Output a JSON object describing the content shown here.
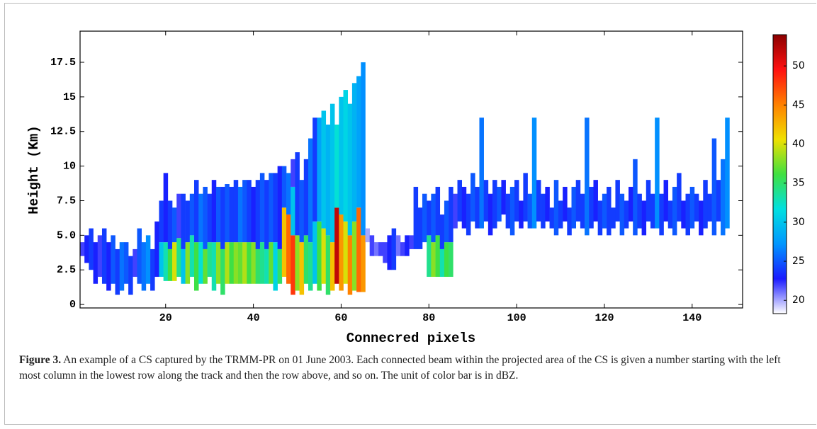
{
  "chart_data": {
    "type": "heatmap",
    "xlabel": "Connecred pixels",
    "ylabel": "Height (Km)",
    "xlim": [
      0.5,
      151.5
    ],
    "xticks": [
      20,
      40,
      60,
      80,
      100,
      120,
      140
    ],
    "ylim": [
      -0.25,
      19.75
    ],
    "yticks": [
      0,
      2.5,
      {
        "value": 5,
        "label": "5.0"
      },
      7.5,
      10,
      12.5,
      15,
      17.5
    ],
    "clim": [
      18.3,
      54
    ],
    "colorbar_ticks": [
      20,
      25,
      30,
      35,
      40,
      45,
      50
    ],
    "colormap": [
      "#ffffff",
      "#1a1aff",
      "#0096ff",
      "#00e0e0",
      "#40e040",
      "#f0e000",
      "#ff8000",
      "#ff1010",
      "#8b0000"
    ],
    "cells": [
      [
        1,
        3.5,
        4.5,
        22
      ],
      [
        2,
        3,
        5,
        23
      ],
      [
        3,
        2.5,
        5.5,
        24
      ],
      [
        4,
        1.5,
        4.5,
        23
      ],
      [
        5,
        2,
        5,
        22
      ],
      [
        6,
        1.5,
        5.5,
        24
      ],
      [
        7,
        1,
        4.5,
        23
      ],
      [
        8,
        1.5,
        5,
        25
      ],
      [
        9,
        0.7,
        4,
        24
      ],
      [
        10,
        1,
        4.5,
        26
      ],
      [
        11,
        1.5,
        4.5,
        25
      ],
      [
        12,
        0.7,
        3.5,
        24
      ],
      [
        13,
        2,
        4,
        22
      ],
      [
        14,
        1.5,
        5.5,
        25
      ],
      [
        15,
        1,
        4.5,
        26
      ],
      [
        16,
        1.5,
        5,
        27
      ],
      [
        17,
        1,
        4,
        24
      ],
      [
        18,
        2,
        6,
        23
      ],
      [
        19,
        2,
        4.5,
        30
      ],
      [
        19,
        4.5,
        7.5,
        24
      ],
      [
        20,
        1.7,
        4.5,
        33
      ],
      [
        20,
        4.5,
        9.5,
        23
      ],
      [
        21,
        1.7,
        4,
        36
      ],
      [
        21,
        4,
        7.5,
        24
      ],
      [
        22,
        1.7,
        4.5,
        40
      ],
      [
        22,
        4.5,
        7,
        25
      ],
      [
        23,
        2,
        4.8,
        34
      ],
      [
        23,
        4.8,
        8,
        22
      ],
      [
        24,
        1.5,
        4,
        30
      ],
      [
        24,
        4,
        8,
        24
      ],
      [
        25,
        1.5,
        4.5,
        38
      ],
      [
        25,
        4.5,
        7.5,
        24
      ],
      [
        26,
        2,
        5,
        33
      ],
      [
        26,
        5,
        8,
        25
      ],
      [
        27,
        1,
        4.5,
        36
      ],
      [
        27,
        4.5,
        9,
        24
      ],
      [
        28,
        1.5,
        4.5,
        32
      ],
      [
        28,
        4.5,
        8,
        26
      ],
      [
        29,
        1.5,
        4,
        37
      ],
      [
        29,
        4,
        8.5,
        25
      ],
      [
        30,
        2,
        4.5,
        34
      ],
      [
        30,
        4.5,
        8,
        24
      ],
      [
        31,
        1,
        4.5,
        33
      ],
      [
        31,
        4.5,
        9,
        23
      ],
      [
        32,
        1.5,
        4.5,
        38
      ],
      [
        32,
        4.5,
        8.5,
        25
      ],
      [
        33,
        0.7,
        4,
        35
      ],
      [
        33,
        4,
        8.5,
        24
      ],
      [
        34,
        1.5,
        4.5,
        39
      ],
      [
        34,
        4.5,
        8.7,
        25
      ],
      [
        35,
        1.5,
        4.5,
        36
      ],
      [
        35,
        4.5,
        8.5,
        24
      ],
      [
        36,
        1.5,
        4.5,
        38
      ],
      [
        36,
        4.5,
        9,
        24
      ],
      [
        37,
        1.5,
        4.5,
        37
      ],
      [
        37,
        4.5,
        8.5,
        26
      ],
      [
        38,
        1.5,
        4.5,
        39
      ],
      [
        38,
        4.5,
        9,
        25
      ],
      [
        39,
        1.5,
        4.5,
        36
      ],
      [
        39,
        4.5,
        9,
        24
      ],
      [
        40,
        1.5,
        4.5,
        38
      ],
      [
        40,
        4.5,
        8.5,
        23
      ],
      [
        41,
        1.5,
        4,
        35
      ],
      [
        41,
        4,
        9,
        24
      ],
      [
        42,
        1.5,
        4.5,
        34
      ],
      [
        42,
        4.5,
        9.5,
        25
      ],
      [
        43,
        1.5,
        4,
        33
      ],
      [
        43,
        4,
        9,
        24
      ],
      [
        44,
        1.5,
        4.5,
        37
      ],
      [
        44,
        4.5,
        9.5,
        25
      ],
      [
        45,
        1,
        4.5,
        31
      ],
      [
        45,
        4.5,
        9.5,
        24
      ],
      [
        46,
        1.5,
        4,
        35
      ],
      [
        46,
        4,
        10,
        23
      ],
      [
        47,
        2,
        7,
        42
      ],
      [
        47,
        7,
        10,
        25
      ],
      [
        48,
        1.5,
        6.5,
        46
      ],
      [
        48,
        6.5,
        9.5,
        26
      ],
      [
        49,
        0.7,
        5,
        48
      ],
      [
        49,
        5,
        8.5,
        30
      ],
      [
        49,
        8.5,
        10.5,
        22
      ],
      [
        50,
        1,
        5,
        38
      ],
      [
        50,
        5,
        11,
        24
      ],
      [
        51,
        0.7,
        4.5,
        42
      ],
      [
        51,
        4.5,
        9,
        25
      ],
      [
        52,
        1.5,
        5,
        35
      ],
      [
        52,
        5,
        10.5,
        24
      ],
      [
        53,
        1,
        4.5,
        34
      ],
      [
        53,
        4.5,
        12,
        26
      ],
      [
        54,
        1.5,
        6,
        30
      ],
      [
        54,
        6,
        13.5,
        24
      ],
      [
        55,
        1,
        6,
        36
      ],
      [
        55,
        6,
        13.5,
        28
      ],
      [
        56,
        1.5,
        5.5,
        40
      ],
      [
        56,
        5.5,
        14,
        30
      ],
      [
        57,
        0.7,
        5,
        35
      ],
      [
        57,
        5,
        13,
        29
      ],
      [
        58,
        1,
        4.5,
        42
      ],
      [
        58,
        4.5,
        14.5,
        30
      ],
      [
        59,
        1.5,
        7,
        52
      ],
      [
        59,
        7,
        13,
        32
      ],
      [
        60,
        1,
        6.5,
        44
      ],
      [
        60,
        6.5,
        15,
        30
      ],
      [
        61,
        1.5,
        6,
        40
      ],
      [
        61,
        6,
        15.5,
        31
      ],
      [
        62,
        0.7,
        5,
        45
      ],
      [
        62,
        5,
        14.5,
        30
      ],
      [
        63,
        1,
        6,
        38
      ],
      [
        63,
        6,
        16,
        29
      ],
      [
        64,
        0.9,
        7,
        46
      ],
      [
        64,
        7,
        16.5,
        28
      ],
      [
        65,
        0.9,
        5,
        44
      ],
      [
        65,
        5,
        17.5,
        27
      ],
      [
        66,
        4.5,
        5.5,
        20
      ],
      [
        67,
        3.5,
        5,
        22
      ],
      [
        68,
        3.5,
        4.5,
        21
      ],
      [
        69,
        3.5,
        4.5,
        22
      ],
      [
        70,
        3,
        4.5,
        22
      ],
      [
        71,
        2.5,
        5,
        23
      ],
      [
        72,
        2.5,
        5.5,
        24
      ],
      [
        73,
        3.5,
        5,
        21
      ],
      [
        74,
        3.5,
        4.5,
        22
      ],
      [
        75,
        3.5,
        5,
        23
      ],
      [
        76,
        4,
        5,
        22
      ],
      [
        77,
        4,
        8.5,
        24
      ],
      [
        78,
        4,
        7,
        24
      ],
      [
        79,
        4.5,
        8,
        25
      ],
      [
        80,
        2,
        5,
        34
      ],
      [
        80,
        5,
        7.5,
        24
      ],
      [
        81,
        2,
        4.5,
        38
      ],
      [
        81,
        4.5,
        8,
        25
      ],
      [
        82,
        2,
        5,
        36
      ],
      [
        82,
        5,
        8.5,
        24
      ],
      [
        83,
        2,
        4,
        33
      ],
      [
        83,
        4,
        6.5,
        24
      ],
      [
        84,
        2,
        4.5,
        36
      ],
      [
        84,
        4.5,
        7.5,
        25
      ],
      [
        85,
        2,
        4.5,
        35
      ],
      [
        85,
        4.5,
        8.5,
        24
      ],
      [
        86,
        5.5,
        8,
        22
      ],
      [
        87,
        6,
        9,
        24
      ],
      [
        88,
        5.5,
        8.5,
        23
      ],
      [
        89,
        5,
        8,
        24
      ],
      [
        90,
        6,
        9.5,
        25
      ],
      [
        91,
        5.5,
        8.5,
        24
      ],
      [
        92,
        5.5,
        13.5,
        26
      ],
      [
        93,
        6,
        9,
        24
      ],
      [
        94,
        5,
        8,
        23
      ],
      [
        95,
        5.5,
        9,
        24
      ],
      [
        96,
        6,
        8.5,
        25
      ],
      [
        97,
        6.5,
        9,
        23
      ],
      [
        98,
        5.5,
        8,
        24
      ],
      [
        99,
        5,
        8.5,
        25
      ],
      [
        100,
        6,
        9,
        24
      ],
      [
        101,
        5.5,
        7.5,
        23
      ],
      [
        102,
        6,
        9.5,
        24
      ],
      [
        103,
        5.5,
        8,
        25
      ],
      [
        104,
        5.5,
        13.5,
        27
      ],
      [
        105,
        6,
        9,
        24
      ],
      [
        106,
        5.5,
        8,
        24
      ],
      [
        107,
        6,
        8.5,
        23
      ],
      [
        108,
        5.5,
        7,
        24
      ],
      [
        109,
        5,
        9,
        25
      ],
      [
        110,
        5.5,
        7.5,
        24
      ],
      [
        111,
        6,
        8.5,
        23
      ],
      [
        112,
        5,
        7,
        24
      ],
      [
        113,
        5.5,
        8.5,
        25
      ],
      [
        114,
        6,
        9,
        24
      ],
      [
        115,
        5.5,
        8,
        24
      ],
      [
        116,
        5,
        13.5,
        26
      ],
      [
        117,
        5.5,
        8.5,
        24
      ],
      [
        118,
        6,
        9,
        23
      ],
      [
        119,
        5,
        7.5,
        24
      ],
      [
        120,
        5.5,
        8,
        25
      ],
      [
        121,
        5,
        8.5,
        24
      ],
      [
        122,
        5.5,
        7,
        24
      ],
      [
        123,
        6,
        9,
        24
      ],
      [
        124,
        5,
        8,
        25
      ],
      [
        125,
        5.5,
        7.5,
        24
      ],
      [
        126,
        6,
        8.5,
        23
      ],
      [
        127,
        5,
        10.5,
        25
      ],
      [
        128,
        5.5,
        8,
        24
      ],
      [
        129,
        5,
        7.5,
        23
      ],
      [
        130,
        6,
        9,
        24
      ],
      [
        131,
        5.5,
        8,
        24
      ],
      [
        132,
        5.5,
        13.5,
        27
      ],
      [
        133,
        5,
        8,
        24
      ],
      [
        134,
        6,
        9,
        23
      ],
      [
        135,
        5.5,
        7.5,
        24
      ],
      [
        136,
        5,
        8.5,
        25
      ],
      [
        137,
        6,
        9.5,
        24
      ],
      [
        138,
        5.5,
        7.5,
        23
      ],
      [
        139,
        5,
        8,
        24
      ],
      [
        140,
        5.5,
        8.5,
        25
      ],
      [
        141,
        6,
        8,
        24
      ],
      [
        142,
        5,
        7.5,
        23
      ],
      [
        143,
        5.5,
        9,
        24
      ],
      [
        144,
        6,
        8,
        24
      ],
      [
        145,
        5,
        12,
        25
      ],
      [
        146,
        6,
        9,
        24
      ],
      [
        147,
        5,
        10.5,
        26
      ],
      [
        148,
        5.5,
        13.5,
        27
      ]
    ]
  },
  "figure": {
    "label": "Figure 3.",
    "text": "An example of a CS captured by the TRMM-PR on 01 June 2003. Each connected beam within the projected area of the CS is given a number starting with the left most column in the lowest row along the track and then the row above, and so on. The unit of color bar is in dBZ."
  }
}
